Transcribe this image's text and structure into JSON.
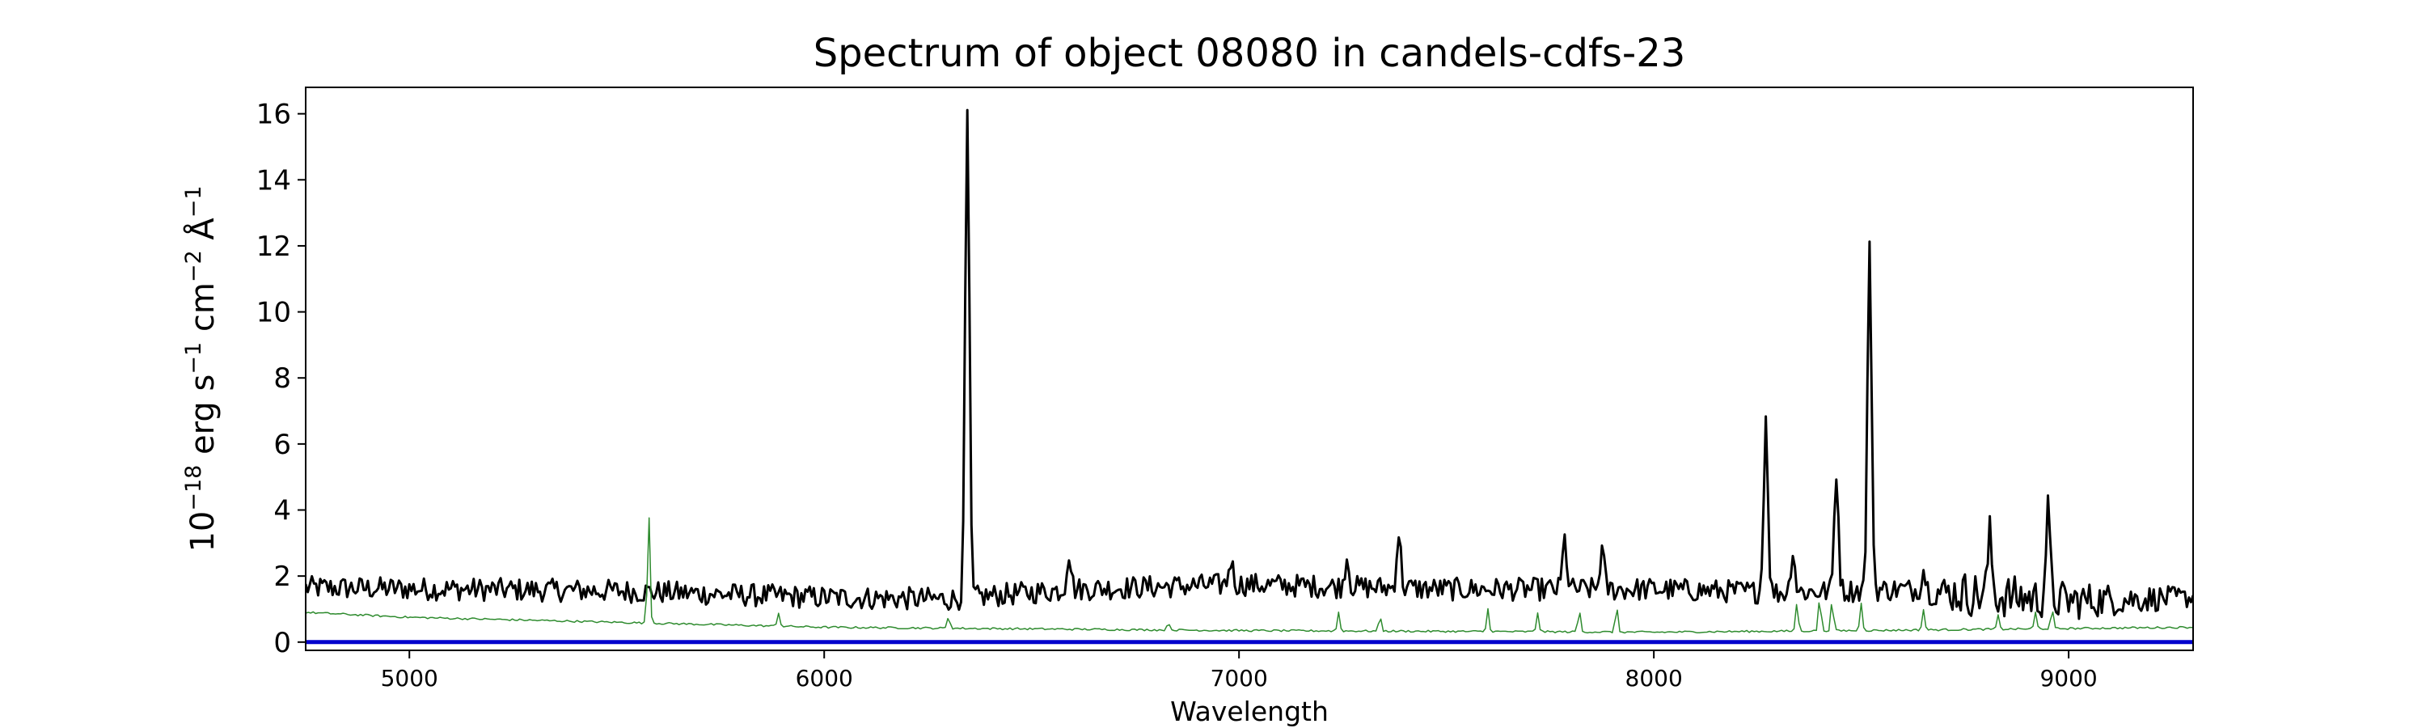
{
  "chart_data": {
    "type": "line",
    "title": "Spectrum of object 08080 in candels-cdfs-23",
    "xlabel": "Wavelength",
    "ylabel_parts": [
      "10",
      "−18",
      " erg s",
      "−1",
      " cm",
      "−2",
      " Å",
      "−1"
    ],
    "xlim": [
      4750,
      9300
    ],
    "ylim": [
      -0.25,
      16.8
    ],
    "x_ticks": [
      5000,
      6000,
      7000,
      8000,
      9000
    ],
    "y_ticks": [
      0,
      2,
      4,
      6,
      8,
      10,
      12,
      14,
      16
    ],
    "grid": false,
    "legend": "none",
    "series": [
      {
        "role": "flux",
        "color": "#000000",
        "x_range": [
          4750,
          9300
        ],
        "continuum": [
          [
            4750,
            1.65
          ],
          [
            5500,
            1.55
          ],
          [
            6000,
            1.35
          ],
          [
            6300,
            1.3
          ],
          [
            6600,
            1.6
          ],
          [
            7000,
            1.75
          ],
          [
            7500,
            1.6
          ],
          [
            8000,
            1.6
          ],
          [
            8300,
            1.5
          ],
          [
            8600,
            1.6
          ],
          [
            9000,
            1.25
          ],
          [
            9300,
            1.35
          ]
        ],
        "noise": [
          [
            4750,
            0.35
          ],
          [
            8650,
            0.35
          ],
          [
            8750,
            0.7
          ],
          [
            9000,
            0.6
          ],
          [
            9300,
            0.3
          ]
        ],
        "peaks": [
          {
            "x": 6345,
            "y": 16.05
          },
          {
            "x": 6590,
            "y": 2.75
          },
          {
            "x": 6980,
            "y": 2.5
          },
          {
            "x": 7260,
            "y": 2.6
          },
          {
            "x": 7385,
            "y": 3.3
          },
          {
            "x": 7785,
            "y": 3.1
          },
          {
            "x": 7875,
            "y": 2.8
          },
          {
            "x": 8270,
            "y": 6.8
          },
          {
            "x": 8335,
            "y": 2.8
          },
          {
            "x": 8440,
            "y": 5.2
          },
          {
            "x": 8520,
            "y": 11.85
          },
          {
            "x": 8650,
            "y": 2.2
          },
          {
            "x": 8810,
            "y": 3.2
          },
          {
            "x": 8950,
            "y": 3.9
          }
        ]
      },
      {
        "role": "error",
        "color": "#2e8b2e",
        "x_range": [
          4750,
          9300
        ],
        "continuum": [
          [
            4750,
            0.9
          ],
          [
            5000,
            0.75
          ],
          [
            5500,
            0.6
          ],
          [
            6000,
            0.45
          ],
          [
            7000,
            0.35
          ],
          [
            8000,
            0.3
          ],
          [
            8500,
            0.35
          ],
          [
            9300,
            0.45
          ]
        ],
        "noise": [
          [
            4750,
            0.03
          ],
          [
            9300,
            0.03
          ]
        ],
        "peaks": [
          {
            "x": 5577,
            "y": 3.95
          },
          {
            "x": 5890,
            "y": 0.9
          },
          {
            "x": 6300,
            "y": 0.8
          },
          {
            "x": 6830,
            "y": 0.6
          },
          {
            "x": 7240,
            "y": 0.9
          },
          {
            "x": 7340,
            "y": 0.8
          },
          {
            "x": 7600,
            "y": 1.0
          },
          {
            "x": 7720,
            "y": 0.9
          },
          {
            "x": 7820,
            "y": 1.0
          },
          {
            "x": 7910,
            "y": 1.1
          },
          {
            "x": 8345,
            "y": 1.2
          },
          {
            "x": 8400,
            "y": 1.4
          },
          {
            "x": 8430,
            "y": 1.3
          },
          {
            "x": 8500,
            "y": 1.2
          },
          {
            "x": 8650,
            "y": 1.0
          },
          {
            "x": 8830,
            "y": 0.8
          },
          {
            "x": 8920,
            "y": 0.9
          },
          {
            "x": 8960,
            "y": 1.0
          }
        ]
      },
      {
        "role": "zero-line",
        "color": "#0000cd",
        "x": [
          4750,
          9300
        ],
        "y": [
          0,
          0
        ]
      }
    ]
  }
}
